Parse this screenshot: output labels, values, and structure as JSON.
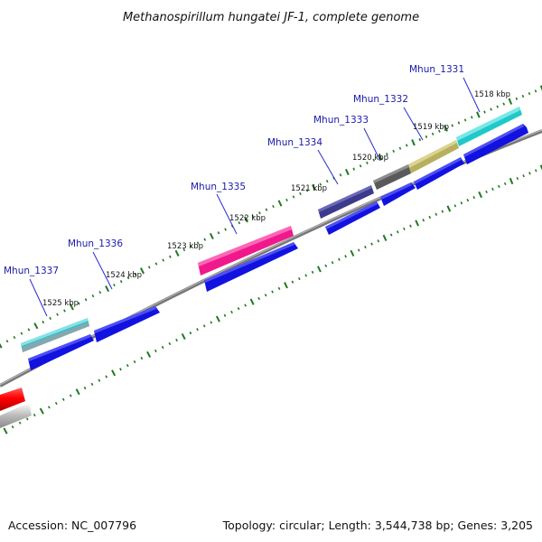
{
  "title": "Methanospirillum hungatei JF-1, complete genome",
  "footer": {
    "accession": "Accession: NC_007796",
    "summary": "Topology: circular; Length: 3,544,738 bp; Genes: 3,205"
  },
  "colors": {
    "backbone": "#777777",
    "tick": "#1f7a1f",
    "cds": "#1212e0",
    "label": "#1a1aa8"
  },
  "genes": [
    {
      "name": "Mhun_1331",
      "color": "#21c8c8"
    },
    {
      "name": "Mhun_1332",
      "color": "#b8b060"
    },
    {
      "name": "Mhun_1333",
      "color": "#5a5a5a"
    },
    {
      "name": "Mhun_1334",
      "color": "#3c3a8a"
    },
    {
      "name": "Mhun_1335",
      "color": "#f0188c"
    },
    {
      "name": "Mhun_1336",
      "color": null
    },
    {
      "name": "Mhun_1337",
      "color": "#38c0c8"
    }
  ],
  "kbp_labels": [
    "1518 kbp",
    "1519 kbp",
    "1520 kbp",
    "1521 kbp",
    "1522 kbp",
    "1523 kbp",
    "1524 kbp",
    "1525 kbp"
  ]
}
